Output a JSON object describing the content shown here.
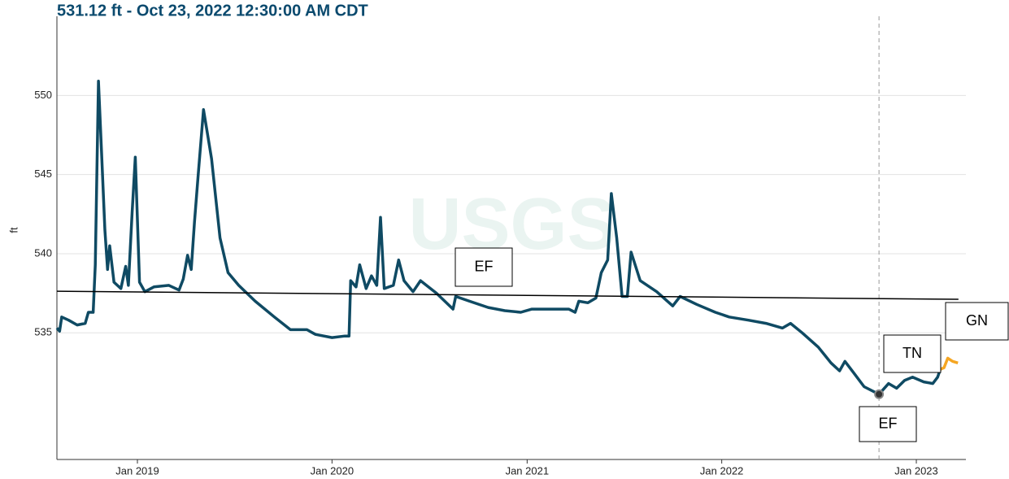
{
  "chart_data": {
    "type": "line",
    "title": "531.12 ft - Oct 23, 2022 12:30:00 AM CDT",
    "y_label": "ft",
    "watermark": "USGS",
    "xlim": [
      "2018-08-03",
      "2023-04-04"
    ],
    "xticks": [
      {
        "value": "2019-01-01",
        "label": "Jan 2019"
      },
      {
        "value": "2020-01-01",
        "label": "Jan 2020"
      },
      {
        "value": "2021-01-01",
        "label": "Jan 2021"
      },
      {
        "value": "2022-01-01",
        "label": "Jan 2022"
      },
      {
        "value": "2023-01-01",
        "label": "Jan 2023"
      }
    ],
    "ylim": [
      527,
      555
    ],
    "yticks": [
      535,
      540,
      545,
      550
    ],
    "grid": true,
    "series": [
      {
        "color": "#0f4a63",
        "x": [
          "2018-08-03",
          "2018-08-08",
          "2018-08-12",
          "2018-08-25",
          "2018-09-10",
          "2018-09-25",
          "2018-10-01",
          "2018-10-10",
          "2018-10-14",
          "2018-10-20",
          "2018-10-25",
          "2018-11-01",
          "2018-11-06",
          "2018-11-10",
          "2018-11-18",
          "2018-12-01",
          "2018-12-10",
          "2018-12-15",
          "2018-12-22",
          "2018-12-28",
          "2019-01-05",
          "2019-01-15",
          "2019-02-01",
          "2019-03-01",
          "2019-03-20",
          "2019-03-28",
          "2019-04-05",
          "2019-04-12",
          "2019-04-18",
          "2019-04-25",
          "2019-05-05",
          "2019-05-20",
          "2019-06-05",
          "2019-06-20",
          "2019-07-10",
          "2019-08-10",
          "2019-09-15",
          "2019-10-15",
          "2019-11-15",
          "2019-12-01",
          "2020-01-01",
          "2020-01-25",
          "2020-02-02",
          "2020-02-05",
          "2020-02-15",
          "2020-02-22",
          "2020-03-05",
          "2020-03-15",
          "2020-03-25",
          "2020-04-01",
          "2020-04-08",
          "2020-04-25",
          "2020-05-05",
          "2020-05-15",
          "2020-06-01",
          "2020-06-15",
          "2020-07-15",
          "2020-08-15",
          "2020-08-20",
          "2020-09-15",
          "2020-10-20",
          "2020-11-20",
          "2020-12-20",
          "2021-01-10",
          "2021-02-15",
          "2021-03-20",
          "2021-04-01",
          "2021-04-08",
          "2021-04-25",
          "2021-05-10",
          "2021-05-20",
          "2021-06-01",
          "2021-06-08",
          "2021-06-18",
          "2021-06-28",
          "2021-07-08",
          "2021-07-15",
          "2021-08-01",
          "2021-09-01",
          "2021-10-01",
          "2021-10-15",
          "2021-11-15",
          "2021-12-20",
          "2022-01-15",
          "2022-02-20",
          "2022-03-25",
          "2022-04-25",
          "2022-05-10",
          "2022-06-01",
          "2022-07-01",
          "2022-07-25",
          "2022-08-10",
          "2022-08-20",
          "2022-09-05",
          "2022-09-25",
          "2022-10-23",
          "2022-11-10",
          "2022-11-25",
          "2022-12-10",
          "2022-12-25",
          "2023-01-15",
          "2023-02-01",
          "2023-02-10",
          "2023-02-15"
        ],
        "values": [
          535.3,
          535.1,
          536.0,
          535.8,
          535.5,
          535.6,
          536.3,
          536.3,
          539.3,
          550.9,
          547.0,
          541.5,
          539.0,
          540.5,
          538.2,
          537.8,
          539.2,
          538.0,
          542.6,
          546.1,
          538.2,
          537.6,
          537.9,
          538.0,
          537.7,
          538.4,
          539.9,
          539.0,
          542.0,
          545.0,
          549.1,
          546.0,
          541.0,
          538.8,
          538.0,
          537.0,
          536.0,
          535.2,
          535.2,
          534.9,
          534.7,
          534.8,
          534.8,
          538.3,
          537.9,
          539.3,
          537.8,
          538.6,
          538.0,
          542.3,
          537.8,
          538.0,
          539.6,
          538.3,
          537.6,
          538.3,
          537.5,
          536.5,
          537.3,
          537.0,
          536.6,
          536.4,
          536.3,
          536.5,
          536.5,
          536.5,
          536.3,
          537.0,
          536.9,
          537.2,
          538.8,
          539.6,
          543.8,
          541.0,
          537.3,
          537.3,
          540.1,
          538.3,
          537.6,
          536.7,
          537.3,
          536.8,
          536.3,
          536.0,
          535.8,
          535.6,
          535.3,
          535.6,
          535.0,
          534.1,
          533.1,
          532.6,
          533.2,
          532.5,
          531.6,
          531.12,
          531.8,
          531.5,
          532.0,
          532.2,
          531.9,
          531.8,
          532.2,
          532.7
        ]
      },
      {
        "color": "#f5a623",
        "x": [
          "2023-02-15",
          "2023-02-22",
          "2023-03-01",
          "2023-03-10",
          "2023-03-20"
        ],
        "values": [
          532.7,
          532.8,
          533.4,
          533.2,
          533.1
        ]
      }
    ],
    "reference_line": {
      "color": "#000000",
      "x": [
        "2018-08-03",
        "2023-03-21"
      ],
      "y": [
        537.63,
        537.12
      ]
    },
    "highlight": {
      "x": "2022-10-23",
      "value": 531.12
    },
    "annotations": [
      "EF",
      "TN",
      "GN",
      "EF"
    ]
  }
}
